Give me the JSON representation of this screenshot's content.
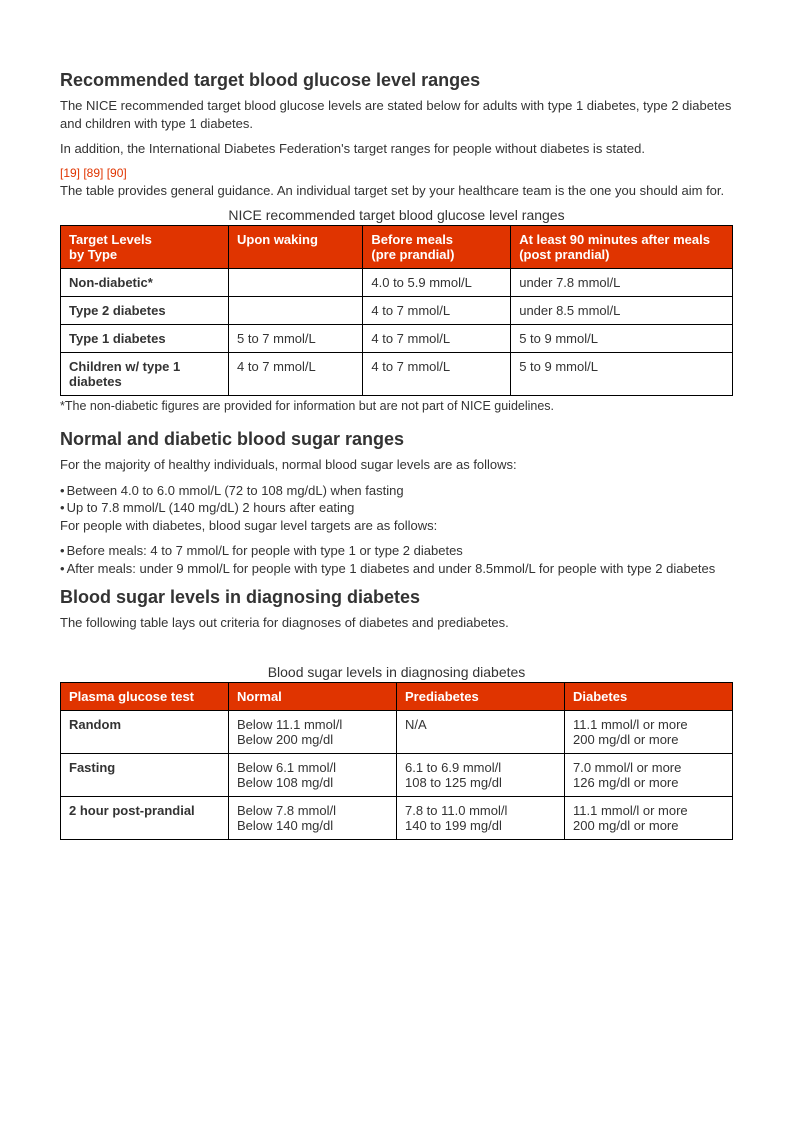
{
  "section1": {
    "heading": "Recommended target blood glucose level ranges",
    "p1": "The NICE recommended target blood glucose levels are stated below for adults with type 1 diabetes, type 2 diabetes and children with type 1 diabetes.",
    "p2": "In addition, the International Diabetes Federation's target ranges for people without diabetes is stated.",
    "refs": "[19] [89] [90]",
    "p3": "The table provides general guidance. An individual target set by your healthcare team is the one you should aim for.",
    "caption": "NICE recommended target blood glucose level ranges",
    "table": {
      "header_color": "#e03400",
      "columns": [
        "Target Levels\nby Type",
        "Upon waking",
        "Before meals\n(pre prandial)",
        "At least 90 minutes after meals\n(post prandial)"
      ],
      "rows": [
        [
          "Non-diabetic*",
          "",
          "4.0 to 5.9 mmol/L",
          "under 7.8 mmol/L"
        ],
        [
          "Type 2 diabetes",
          "",
          "4 to 7 mmol/L",
          "under 8.5 mmol/L"
        ],
        [
          "Type 1 diabetes",
          "5 to 7 mmol/L",
          "4 to 7 mmol/L",
          "5 to 9 mmol/L"
        ],
        [
          "Children w/ type 1 diabetes",
          "4 to 7 mmol/L",
          "4 to 7 mmol/L",
          "5 to 9 mmol/L"
        ]
      ]
    },
    "footnote": "*The non-diabetic figures are provided for information but are not part of NICE guidelines."
  },
  "section2": {
    "heading": "Normal and diabetic blood sugar ranges",
    "p1": "For the majority of healthy individuals, normal blood sugar levels are as follows:",
    "bul1": "Between 4.0 to 6.0 mmol/L (72 to 108 mg/dL) when fasting",
    "bul2": "Up to 7.8 mmol/L (140 mg/dL) 2 hours after eating",
    "p2": "For people with diabetes, blood sugar level targets are as follows:",
    "bul3": "Before meals: 4 to 7 mmol/L for people with type 1 or type 2 diabetes",
    "bul4": "After meals: under 9 mmol/L for people with type 1 diabetes and under 8.5mmol/L for people with type 2 diabetes"
  },
  "section3": {
    "heading": "Blood sugar levels in diagnosing diabetes",
    "p1": "The following table lays out criteria for diagnoses of diabetes and prediabetes.",
    "caption": "Blood sugar levels in diagnosing diabetes",
    "table": {
      "header_color": "#e03400",
      "columns": [
        "Plasma glucose test",
        "Normal",
        "Prediabetes",
        "Diabetes"
      ],
      "rows": [
        [
          "Random",
          "Below 11.1 mmol/l\nBelow 200 mg/dl",
          "N/A",
          "11.1 mmol/l or more\n200 mg/dl or more"
        ],
        [
          "Fasting",
          "Below 6.1 mmol/l\nBelow 108 mg/dl",
          "6.1 to 6.9 mmol/l\n108 to 125 mg/dl",
          "7.0 mmol/l or more\n126 mg/dl or more"
        ],
        [
          "2 hour post-prandial",
          "Below 7.8 mmol/l\nBelow 140 mg/dl",
          "7.8 to 11.0 mmol/l\n140 to 199 mg/dl",
          "11.1 mmol/l or more\n200 mg/dl or more"
        ]
      ]
    }
  }
}
